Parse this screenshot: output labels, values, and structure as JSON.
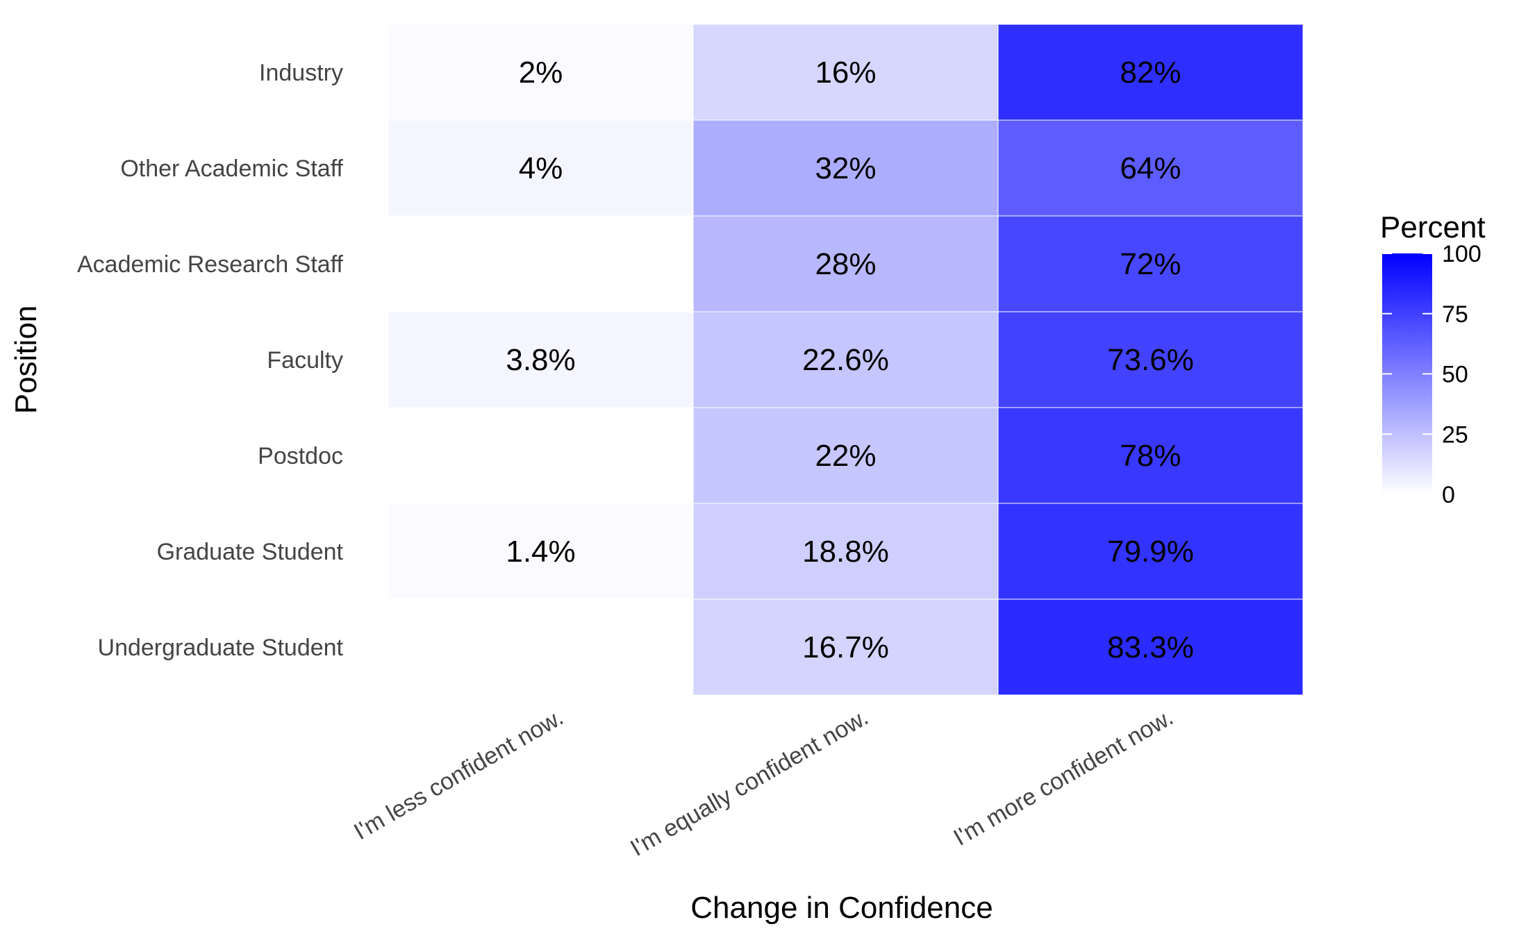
{
  "chart_data": {
    "type": "heatmap",
    "xlabel": "Change in Confidence",
    "ylabel": "Position",
    "x_categories": [
      "I'm less confident now.",
      "I'm equally confident now.",
      "I'm more confident now."
    ],
    "y_categories": [
      "Industry",
      "Other Academic Staff",
      "Academic Research Staff",
      "Faculty",
      "Postdoc",
      "Graduate Student",
      "Undergraduate Student"
    ],
    "cells": [
      {
        "x": "I'm less confident now.",
        "y": "Industry",
        "value": 2,
        "label": "2%"
      },
      {
        "x": "I'm equally confident now.",
        "y": "Industry",
        "value": 16,
        "label": "16%"
      },
      {
        "x": "I'm more confident now.",
        "y": "Industry",
        "value": 82,
        "label": "82%"
      },
      {
        "x": "I'm less confident now.",
        "y": "Other Academic Staff",
        "value": 4,
        "label": "4%"
      },
      {
        "x": "I'm equally confident now.",
        "y": "Other Academic Staff",
        "value": 32,
        "label": "32%"
      },
      {
        "x": "I'm more confident now.",
        "y": "Other Academic Staff",
        "value": 64,
        "label": "64%"
      },
      {
        "x": "I'm equally confident now.",
        "y": "Academic Research Staff",
        "value": 28,
        "label": "28%"
      },
      {
        "x": "I'm more confident now.",
        "y": "Academic Research Staff",
        "value": 72,
        "label": "72%"
      },
      {
        "x": "I'm less confident now.",
        "y": "Faculty",
        "value": 3.8,
        "label": "3.8%"
      },
      {
        "x": "I'm equally confident now.",
        "y": "Faculty",
        "value": 22.6,
        "label": "22.6%"
      },
      {
        "x": "I'm more confident now.",
        "y": "Faculty",
        "value": 73.6,
        "label": "73.6%"
      },
      {
        "x": "I'm equally confident now.",
        "y": "Postdoc",
        "value": 22,
        "label": "22%"
      },
      {
        "x": "I'm more confident now.",
        "y": "Postdoc",
        "value": 78,
        "label": "78%"
      },
      {
        "x": "I'm less confident now.",
        "y": "Graduate Student",
        "value": 1.4,
        "label": "1.4%"
      },
      {
        "x": "I'm equally confident now.",
        "y": "Graduate Student",
        "value": 18.8,
        "label": "18.8%"
      },
      {
        "x": "I'm more confident now.",
        "y": "Graduate Student",
        "value": 79.9,
        "label": "79.9%"
      },
      {
        "x": "I'm equally confident now.",
        "y": "Undergraduate Student",
        "value": 16.7,
        "label": "16.7%"
      },
      {
        "x": "I'm more confident now.",
        "y": "Undergraduate Student",
        "value": 83.3,
        "label": "83.3%"
      }
    ],
    "legend": {
      "title": "Percent",
      "ticks": [
        0,
        25,
        50,
        75,
        100
      ],
      "range": [
        0,
        100
      ],
      "low_color": "#ffffff",
      "high_color": "#0000ff",
      "placement": "right"
    },
    "grid": false
  }
}
